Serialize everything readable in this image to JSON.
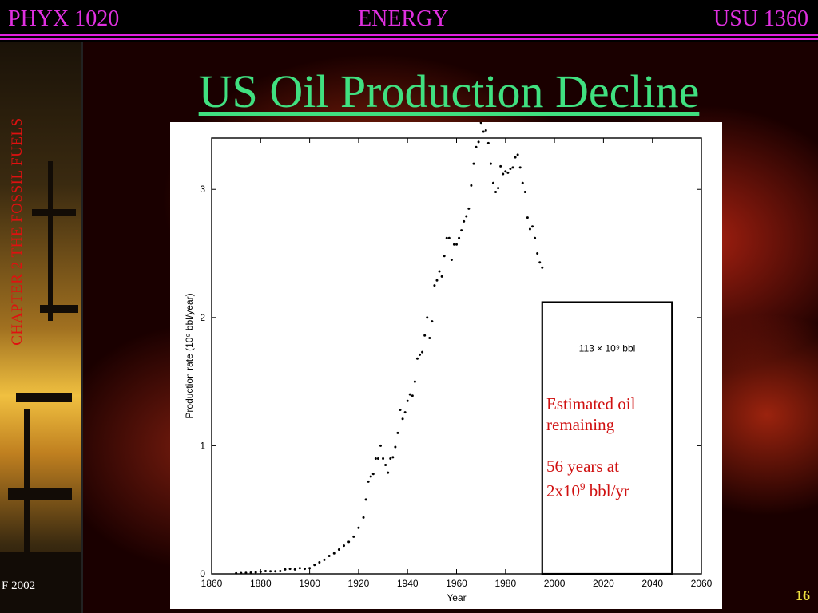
{
  "header": {
    "left": "PHYX 1020",
    "center": "ENERGY",
    "right": "USU 1360"
  },
  "sidebar_label": "CHAPTER 2  THE  FOSSIL FUELS",
  "title": "US Oil Production Decline",
  "footer": {
    "left": "F 2002",
    "page": "16"
  },
  "annotation": {
    "line1": "Estimated oil",
    "line2": "remaining",
    "line3": "56 years at",
    "line4_base": "2x10",
    "line4_exp": "9",
    "line4_unit": " bbl/yr"
  },
  "colors": {
    "header": "#e030e0",
    "title": "#40e080",
    "annotation": "#d01010",
    "page_number": "#f0e040"
  },
  "chart_data": {
    "type": "scatter",
    "xlabel": "Year",
    "ylabel": "Production rate (10⁹ bbl/year)",
    "xlim": [
      1860,
      2060
    ],
    "ylim": [
      0,
      3.4
    ],
    "xticks": [
      1860,
      1880,
      1900,
      1920,
      1940,
      1960,
      1980,
      2000,
      2020,
      2040,
      2060
    ],
    "yticks": [
      0,
      1,
      2,
      3
    ],
    "box_label": "113 × 10⁹ bbl",
    "box_range": {
      "x": [
        1995,
        2048
      ],
      "y": [
        0,
        2.12
      ]
    },
    "points": [
      [
        1870,
        0.005
      ],
      [
        1872,
        0.006
      ],
      [
        1874,
        0.008
      ],
      [
        1876,
        0.009
      ],
      [
        1878,
        0.012
      ],
      [
        1880,
        0.017
      ],
      [
        1882,
        0.022
      ],
      [
        1884,
        0.02
      ],
      [
        1886,
        0.02
      ],
      [
        1888,
        0.022
      ],
      [
        1890,
        0.035
      ],
      [
        1892,
        0.04
      ],
      [
        1894,
        0.035
      ],
      [
        1896,
        0.045
      ],
      [
        1898,
        0.04
      ],
      [
        1900,
        0.045
      ],
      [
        1902,
        0.07
      ],
      [
        1904,
        0.09
      ],
      [
        1906,
        0.11
      ],
      [
        1908,
        0.14
      ],
      [
        1910,
        0.16
      ],
      [
        1912,
        0.19
      ],
      [
        1914,
        0.22
      ],
      [
        1916,
        0.25
      ],
      [
        1918,
        0.29
      ],
      [
        1920,
        0.36
      ],
      [
        1922,
        0.44
      ],
      [
        1923,
        0.58
      ],
      [
        1924,
        0.72
      ],
      [
        1925,
        0.76
      ],
      [
        1926,
        0.78
      ],
      [
        1927,
        0.9
      ],
      [
        1928,
        0.9
      ],
      [
        1929,
        1.0
      ],
      [
        1930,
        0.9
      ],
      [
        1931,
        0.85
      ],
      [
        1932,
        0.79
      ],
      [
        1933,
        0.9
      ],
      [
        1934,
        0.91
      ],
      [
        1935,
        0.99
      ],
      [
        1936,
        1.1
      ],
      [
        1937,
        1.28
      ],
      [
        1938,
        1.21
      ],
      [
        1939,
        1.26
      ],
      [
        1940,
        1.35
      ],
      [
        1941,
        1.4
      ],
      [
        1942,
        1.39
      ],
      [
        1943,
        1.5
      ],
      [
        1944,
        1.68
      ],
      [
        1945,
        1.71
      ],
      [
        1946,
        1.73
      ],
      [
        1947,
        1.86
      ],
      [
        1948,
        2.0
      ],
      [
        1949,
        1.84
      ],
      [
        1950,
        1.97
      ],
      [
        1951,
        2.25
      ],
      [
        1952,
        2.29
      ],
      [
        1953,
        2.36
      ],
      [
        1954,
        2.32
      ],
      [
        1955,
        2.48
      ],
      [
        1956,
        2.62
      ],
      [
        1957,
        2.62
      ],
      [
        1958,
        2.45
      ],
      [
        1959,
        2.57
      ],
      [
        1960,
        2.57
      ],
      [
        1961,
        2.62
      ],
      [
        1962,
        2.68
      ],
      [
        1963,
        2.75
      ],
      [
        1964,
        2.79
      ],
      [
        1965,
        2.85
      ],
      [
        1966,
        3.03
      ],
      [
        1967,
        3.2
      ],
      [
        1968,
        3.33
      ],
      [
        1969,
        3.37
      ],
      [
        1970,
        3.52
      ],
      [
        1971,
        3.45
      ],
      [
        1972,
        3.46
      ],
      [
        1973,
        3.36
      ],
      [
        1974,
        3.2
      ],
      [
        1975,
        3.05
      ],
      [
        1976,
        2.98
      ],
      [
        1977,
        3.01
      ],
      [
        1978,
        3.18
      ],
      [
        1979,
        3.12
      ],
      [
        1980,
        3.14
      ],
      [
        1981,
        3.13
      ],
      [
        1982,
        3.16
      ],
      [
        1983,
        3.17
      ],
      [
        1984,
        3.25
      ],
      [
        1985,
        3.27
      ],
      [
        1986,
        3.17
      ],
      [
        1987,
        3.05
      ],
      [
        1988,
        2.98
      ],
      [
        1989,
        2.78
      ],
      [
        1990,
        2.69
      ],
      [
        1991,
        2.71
      ],
      [
        1992,
        2.62
      ],
      [
        1993,
        2.5
      ],
      [
        1994,
        2.43
      ],
      [
        1995,
        2.39
      ]
    ]
  }
}
